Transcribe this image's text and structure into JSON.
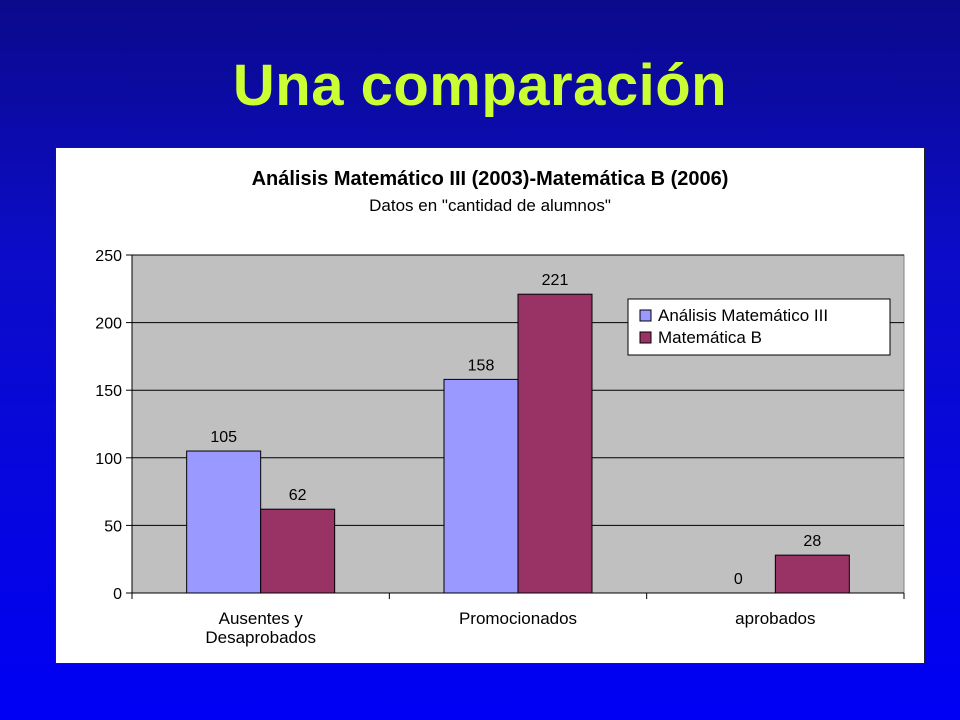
{
  "slide": {
    "title": "Una comparación"
  },
  "colors": {
    "background": "#0000f5",
    "title": "#ccff33",
    "plot_area": "#c0c0c0",
    "series_1": "#9999ff",
    "series_2": "#993366"
  },
  "chart_data": {
    "type": "bar",
    "title": "Análisis Matemático III (2003)-Matemática B (2006)",
    "subtitle": "Datos en \"cantidad de alumnos\"",
    "categories": [
      [
        "Ausentes y",
        "Desaprobados"
      ],
      [
        "Promocionados"
      ],
      [
        "aprobados"
      ]
    ],
    "series": [
      {
        "name": "Análisis Matemático III",
        "values": [
          105,
          158,
          0
        ],
        "color": "#9999ff"
      },
      {
        "name": "Matemática B",
        "values": [
          62,
          221,
          28
        ],
        "color": "#993366"
      }
    ],
    "ylim": [
      0,
      250
    ],
    "yticks": [
      0,
      50,
      100,
      150,
      200,
      250
    ],
    "grid": true,
    "legend": "right"
  }
}
